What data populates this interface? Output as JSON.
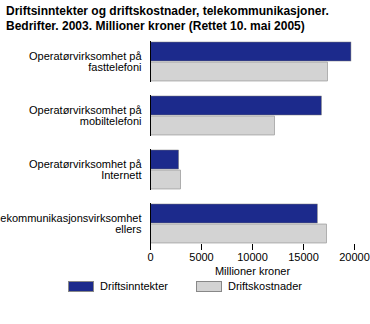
{
  "chart_data": {
    "type": "bar",
    "orientation": "horizontal",
    "title": "Driftsinntekter og driftskostnader, telekommunikasjoner. Bedrifter. 2003. Millioner kroner (Rettet 10. mai 2005)",
    "categories": [
      "Operatørvirksomhet på fasttelefoni",
      "Operatørvirksomhet på mobiltelefoni",
      "Operatørvirksomhet på Internett",
      "Telekommunikasjonsvirksomhet ellers"
    ],
    "series": [
      {
        "name": "Driftsinntekter",
        "color": "#1c2a8c",
        "values": [
          19700,
          16800,
          2800,
          16400
        ]
      },
      {
        "name": "Driftskostnader",
        "color": "#d3d3d3",
        "values": [
          17400,
          12200,
          3000,
          17300
        ]
      }
    ],
    "xlabel": "Millioner kroner",
    "xlim": [
      0,
      20000
    ],
    "xticks": [
      0,
      5000,
      10000,
      15000,
      20000
    ],
    "grid": false,
    "legend": "bottom"
  }
}
